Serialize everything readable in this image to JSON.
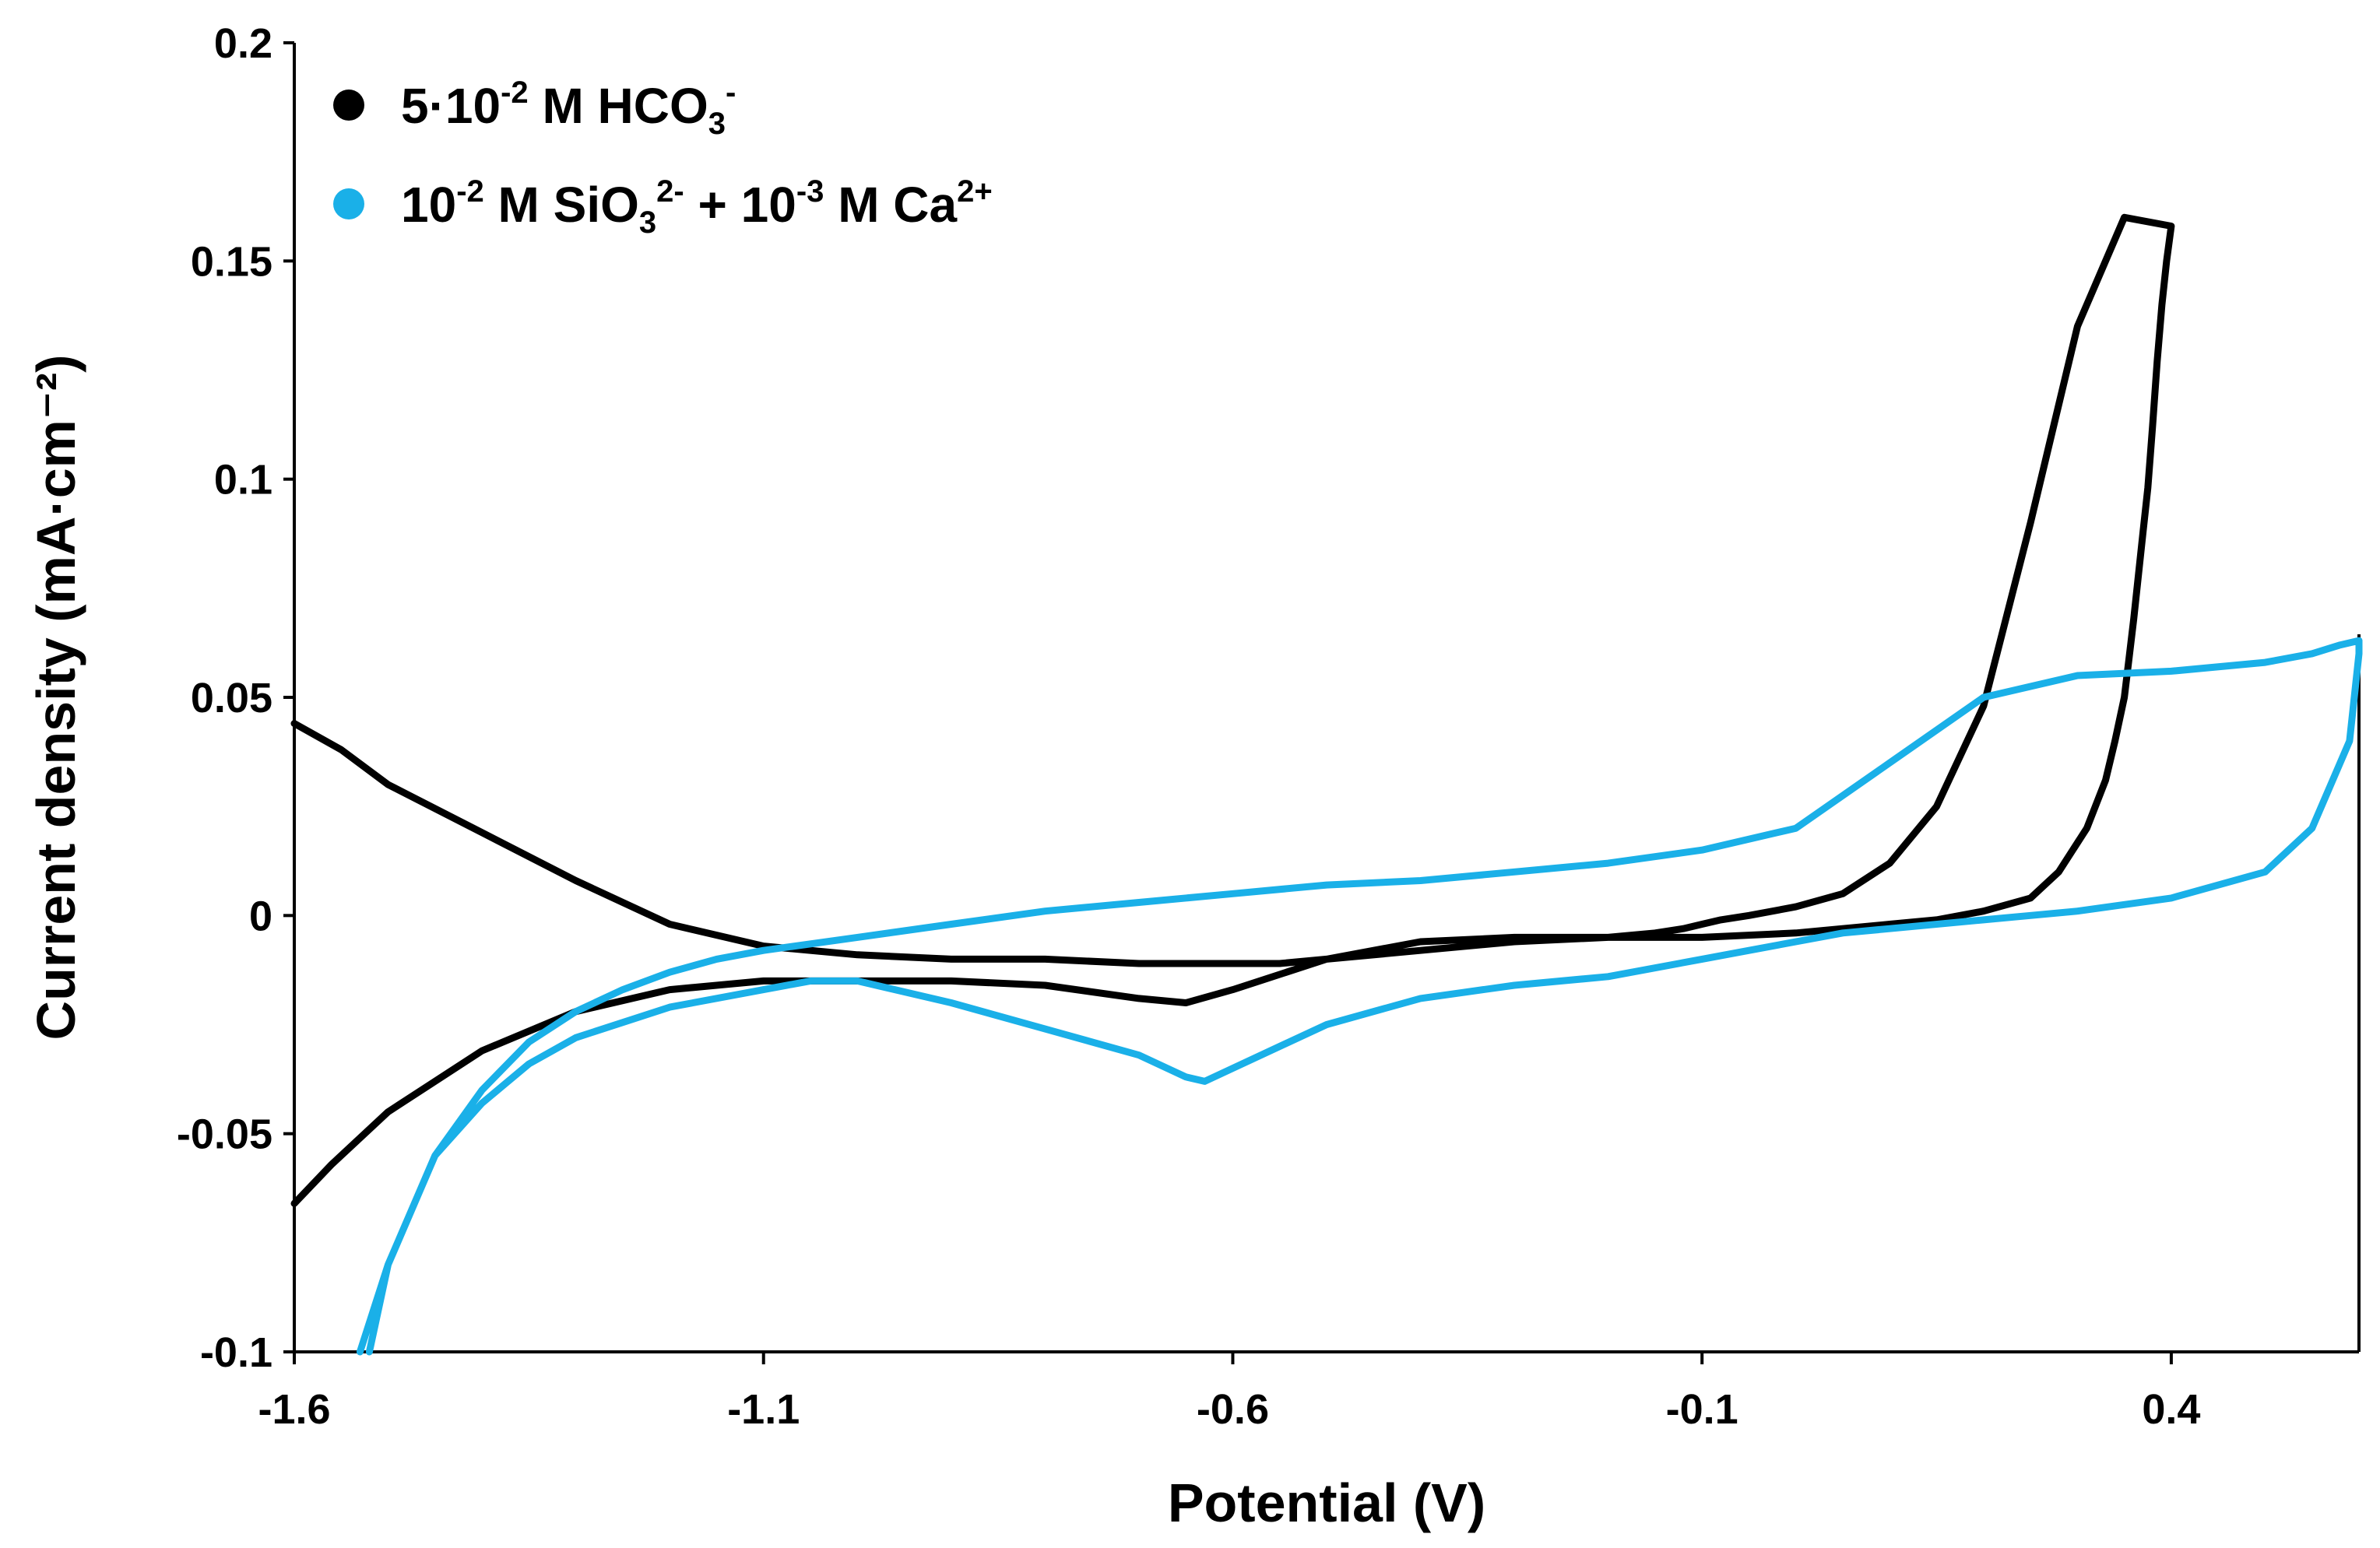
{
  "chart_data": {
    "type": "line",
    "title": "",
    "xlabel": "Potential (V)",
    "ylabel": "Current density (mA·cm⁻²)",
    "xlim": [
      -1.6,
      0.6
    ],
    "ylim": [
      -0.1,
      0.2
    ],
    "x_ticks": [
      -1.6,
      -1.1,
      -0.6,
      -0.1,
      0.4
    ],
    "x_tick_labels": [
      "-1.6",
      "-1.1",
      "-0.6",
      "-0.1",
      "0.4"
    ],
    "y_ticks": [
      -0.1,
      -0.05,
      0,
      0.05,
      0.1,
      0.15,
      0.2
    ],
    "y_tick_labels": [
      "-0.1",
      "-0.05",
      "0",
      "0.05",
      "0.1",
      "0.15",
      "0.2"
    ],
    "grid": false,
    "legend_position": "top-left",
    "series": [
      {
        "name": "5·10-2 M HCO3-",
        "color": "#000000",
        "legend": {
          "base1": "5·10",
          "sup1": "-2",
          "base2": " M HCO",
          "sub": "3",
          "sup2": "-"
        },
        "x": [
          -1.6,
          -1.56,
          -1.5,
          -1.4,
          -1.3,
          -1.2,
          -1.1,
          -1.0,
          -0.9,
          -0.8,
          -0.7,
          -0.65,
          -0.6,
          -0.5,
          -0.4,
          -0.3,
          -0.2,
          -0.15,
          -0.12,
          -0.1,
          -0.08,
          -0.05,
          0.0,
          0.05,
          0.1,
          0.15,
          0.2,
          0.25,
          0.3,
          0.35,
          0.4,
          0.395,
          0.39,
          0.385,
          0.38,
          0.375,
          0.37,
          0.365,
          0.36,
          0.355,
          0.35,
          0.34,
          0.33,
          0.31,
          0.28,
          0.25,
          0.2,
          0.15,
          0.1,
          0.0,
          -0.1,
          -0.2,
          -0.3,
          -0.4,
          -0.5,
          -0.55,
          -0.6,
          -0.65,
          -0.7,
          -0.8,
          -0.9,
          -1.0,
          -1.1,
          -1.2,
          -1.3,
          -1.4,
          -1.5,
          -1.55,
          -1.6
        ],
        "y": [
          -0.066,
          -0.057,
          -0.045,
          -0.031,
          -0.022,
          -0.017,
          -0.015,
          -0.015,
          -0.015,
          -0.016,
          -0.019,
          -0.02,
          -0.017,
          -0.01,
          -0.006,
          -0.005,
          -0.005,
          -0.004,
          -0.003,
          -0.002,
          -0.001,
          0.0,
          0.002,
          0.005,
          0.012,
          0.025,
          0.048,
          0.09,
          0.135,
          0.16,
          0.158,
          0.15,
          0.14,
          0.127,
          0.112,
          0.098,
          0.088,
          0.078,
          0.068,
          0.059,
          0.05,
          0.04,
          0.031,
          0.02,
          0.01,
          0.004,
          0.001,
          -0.001,
          -0.002,
          -0.004,
          -0.005,
          -0.005,
          -0.006,
          -0.008,
          -0.01,
          -0.011,
          -0.011,
          -0.011,
          -0.011,
          -0.01,
          -0.01,
          -0.009,
          -0.007,
          -0.002,
          0.008,
          0.019,
          0.03,
          0.038,
          0.044
        ]
      },
      {
        "name": "10-2 M SiO32- + 10-3 M Ca2+",
        "color": "#1ab0e8",
        "legend": {
          "base1": "10",
          "sup1": "-2",
          "base2": " M SiO",
          "sub": "3",
          "sup2": "2-",
          "base3": " + 10",
          "sup3": "-3",
          "base4": " M Ca",
          "sup4": "2+"
        },
        "x": [
          -1.53,
          -1.5,
          -1.45,
          -1.4,
          -1.35,
          -1.3,
          -1.25,
          -1.2,
          -1.15,
          -1.1,
          -1.0,
          -0.9,
          -0.8,
          -0.7,
          -0.6,
          -0.5,
          -0.4,
          -0.3,
          -0.2,
          -0.1,
          0.0,
          0.1,
          0.2,
          0.3,
          0.4,
          0.5,
          0.55,
          0.58,
          0.6,
          0.6,
          0.59,
          0.57,
          0.55,
          0.5,
          0.4,
          0.3,
          0.25,
          0.2,
          0.1,
          0.05,
          0.0,
          -0.05,
          -0.1,
          -0.2,
          -0.3,
          -0.4,
          -0.5,
          -0.55,
          -0.6,
          -0.63,
          -0.65,
          -0.67,
          -0.7,
          -0.8,
          -0.9,
          -1.0,
          -1.05,
          -1.1,
          -1.2,
          -1.3,
          -1.35,
          -1.4,
          -1.45,
          -1.5,
          -1.52
        ],
        "y": [
          -0.1,
          -0.08,
          -0.055,
          -0.04,
          -0.029,
          -0.022,
          -0.017,
          -0.013,
          -0.01,
          -0.008,
          -0.005,
          -0.002,
          0.001,
          0.003,
          0.005,
          0.007,
          0.008,
          0.01,
          0.012,
          0.015,
          0.02,
          0.035,
          0.05,
          0.055,
          0.056,
          0.058,
          0.06,
          0.062,
          0.063,
          0.06,
          0.04,
          0.03,
          0.02,
          0.01,
          0.004,
          0.001,
          0.0,
          -0.001,
          -0.003,
          -0.004,
          -0.006,
          -0.008,
          -0.01,
          -0.014,
          -0.016,
          -0.019,
          -0.025,
          -0.03,
          -0.035,
          -0.038,
          -0.037,
          -0.035,
          -0.032,
          -0.026,
          -0.02,
          -0.015,
          -0.015,
          -0.017,
          -0.021,
          -0.028,
          -0.034,
          -0.043,
          -0.055,
          -0.08,
          -0.1
        ]
      }
    ]
  }
}
